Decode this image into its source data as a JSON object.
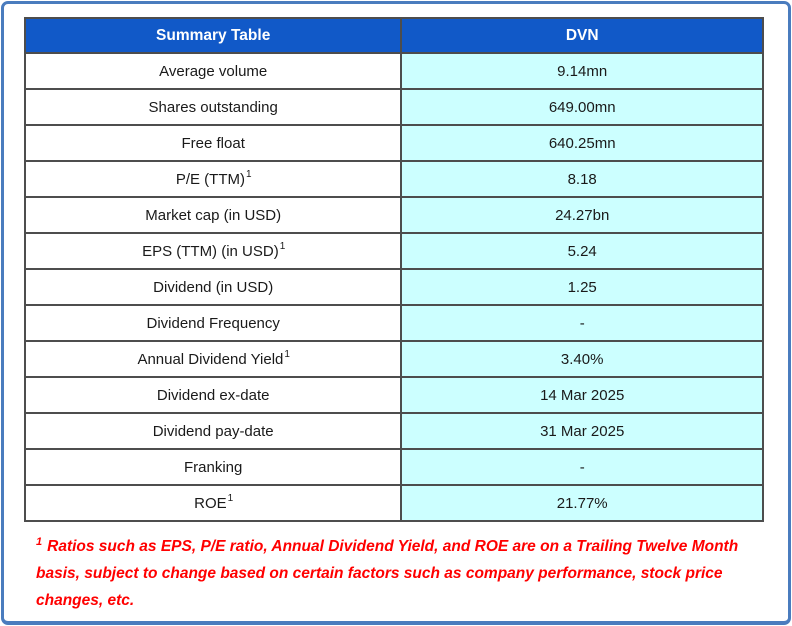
{
  "frame": {
    "border_color": "#4a7cbe"
  },
  "table": {
    "header": {
      "col1": "Summary Table",
      "col2": "DVN",
      "bg_color": "#1159c8",
      "text_color": "#ffffff"
    },
    "value_bg_color": "#ccffff",
    "rows": [
      {
        "label": "Average volume",
        "sup": "",
        "value": "9.14mn"
      },
      {
        "label": "Shares outstanding",
        "sup": "",
        "value": "649.00mn"
      },
      {
        "label": "Free float",
        "sup": "",
        "value": "640.25mn"
      },
      {
        "label": "P/E (TTM)",
        "sup": "1",
        "value": "8.18"
      },
      {
        "label": "Market cap (in USD)",
        "sup": "",
        "value": "24.27bn"
      },
      {
        "label": "EPS (TTM) (in USD)",
        "sup": "1",
        "value": "5.24"
      },
      {
        "label": "Dividend (in USD)",
        "sup": "",
        "value": "1.25"
      },
      {
        "label": "Dividend Frequency",
        "sup": "",
        "value": "-"
      },
      {
        "label": "Annual Dividend Yield",
        "sup": "1",
        "value": "3.40%"
      },
      {
        "label": "Dividend ex-date",
        "sup": "",
        "value": "14 Mar 2025"
      },
      {
        "label": "Dividend pay-date",
        "sup": "",
        "value": "31 Mar 2025"
      },
      {
        "label": "Franking",
        "sup": "",
        "value": "-"
      },
      {
        "label": "ROE",
        "sup": "1",
        "value": "21.77%"
      }
    ]
  },
  "footnote": {
    "sup": "1",
    "text": "Ratios such as EPS, P/E ratio, Annual Dividend Yield, and ROE are on a Trailing Twelve Month basis, subject to change based on certain factors such as company performance, stock price changes, etc.",
    "color": "#ff0000"
  }
}
